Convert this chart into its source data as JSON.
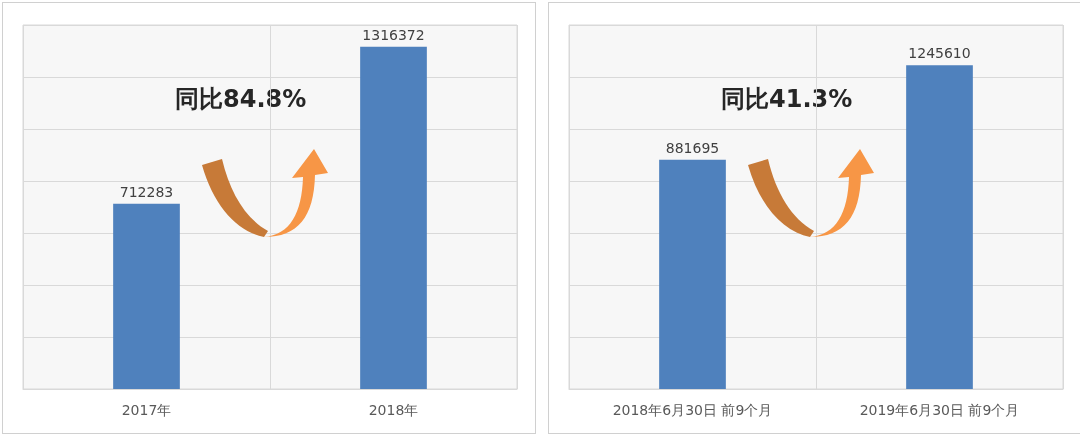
{
  "chart_data": [
    {
      "type": "bar",
      "categories": [
        "2017年",
        "2018年"
      ],
      "values": [
        712283,
        1316372
      ],
      "color": "#4f81bd",
      "data_labels": true,
      "ylim": [
        0,
        1400000
      ],
      "yticks": [
        {
          "value": 0,
          "label": null
        },
        {
          "value": 200000,
          "label": null
        },
        {
          "value": 400000,
          "label": null
        },
        {
          "value": 600000,
          "label": null
        },
        {
          "value": 800000,
          "label": null
        },
        {
          "value": 1000000,
          "label": null
        },
        {
          "value": 1200000,
          "label": null
        },
        {
          "value": 1400000,
          "label": null
        }
      ],
      "grid": true,
      "tick_labels": "x",
      "annotations": [
        "同比84.8%"
      ]
    },
    {
      "type": "bar",
      "categories": [
        "2018年6月30日 前9个月",
        "2019年6月30日 前9个月"
      ],
      "values": [
        881695,
        1245610
      ],
      "color": "#4f81bd",
      "data_labels": true,
      "ylim": [
        0,
        1400000
      ],
      "yticks": [
        {
          "value": 0,
          "label": null
        },
        {
          "value": 200000,
          "label": null
        },
        {
          "value": 400000,
          "label": null
        },
        {
          "value": 600000,
          "label": null
        },
        {
          "value": 800000,
          "label": null
        },
        {
          "value": 1000000,
          "label": null
        },
        {
          "value": 1200000,
          "label": null
        },
        {
          "value": 1400000,
          "label": null
        }
      ],
      "grid": true,
      "tick_labels": "x",
      "annotations": [
        "同比41.3%"
      ]
    }
  ]
}
